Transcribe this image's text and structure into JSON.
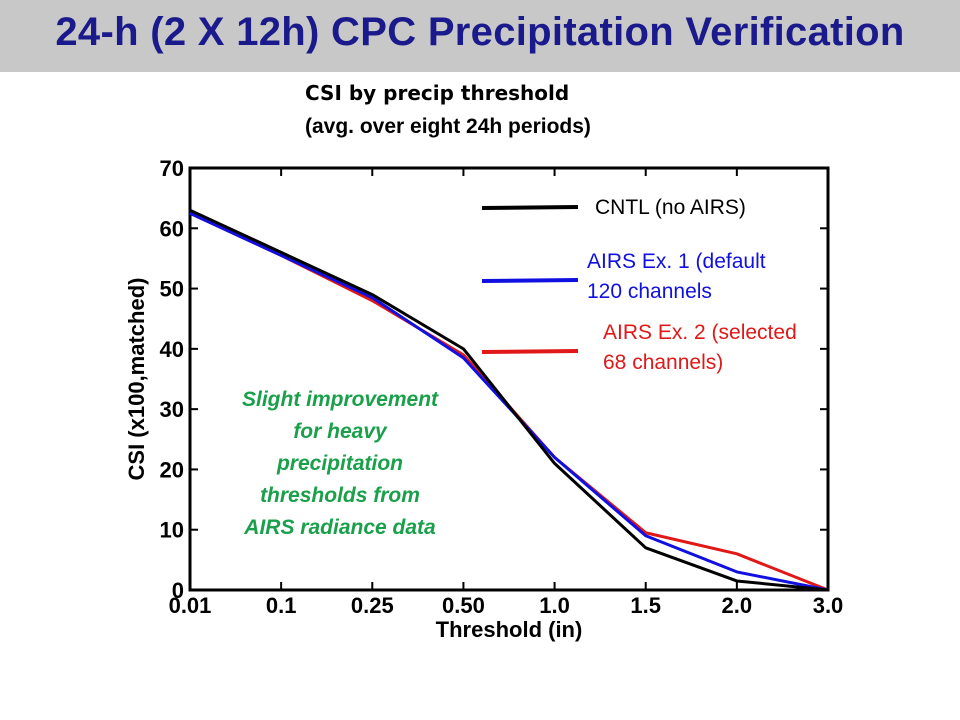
{
  "header": {
    "title": "24-h (2 X 12h) CPC Precipitation Verification",
    "subtitle_line1": "CSI by precip threshold",
    "subtitle_line2": "(avg. over eight 24h periods)"
  },
  "annotation": {
    "lines": [
      "Slight improvement",
      "for heavy",
      "precipitation",
      "thresholds from",
      "AIRS radiance data"
    ],
    "color": "#1aa04a"
  },
  "chart_data": {
    "type": "line",
    "title": "",
    "xlabel": "Threshold (in)",
    "ylabel": "CSI (x100,matched)",
    "categories": [
      "0.01",
      "0.1",
      "0.25",
      "0.50",
      "1.0",
      "1.5",
      "2.0",
      "3.0"
    ],
    "ylim": [
      0,
      70
    ],
    "yticks": [
      0,
      10,
      20,
      30,
      40,
      50,
      60,
      70
    ],
    "grid": false,
    "legend_position": "top-right",
    "series": [
      {
        "name": "CNTL (no AIRS)",
        "legend_lines": [
          "CNTL (no AIRS)"
        ],
        "color": "#000000",
        "values": [
          63,
          56,
          49,
          40,
          21,
          7,
          1.5,
          0
        ]
      },
      {
        "name": "AIRS Ex. 1 (default 120 channels",
        "legend_lines": [
          "AIRS Ex. 1 (default",
          "120 channels"
        ],
        "color": "#1010e0",
        "values": [
          62.5,
          55.5,
          48.5,
          38.5,
          22,
          9,
          3,
          0
        ]
      },
      {
        "name": "AIRS Ex. 2 (selected 68 channels)",
        "legend_lines": [
          "AIRS Ex. 2 (selected",
          "68 channels)"
        ],
        "color": "#e01818",
        "values": [
          62.5,
          55.5,
          48,
          39,
          22,
          9.5,
          6,
          0
        ]
      }
    ]
  }
}
